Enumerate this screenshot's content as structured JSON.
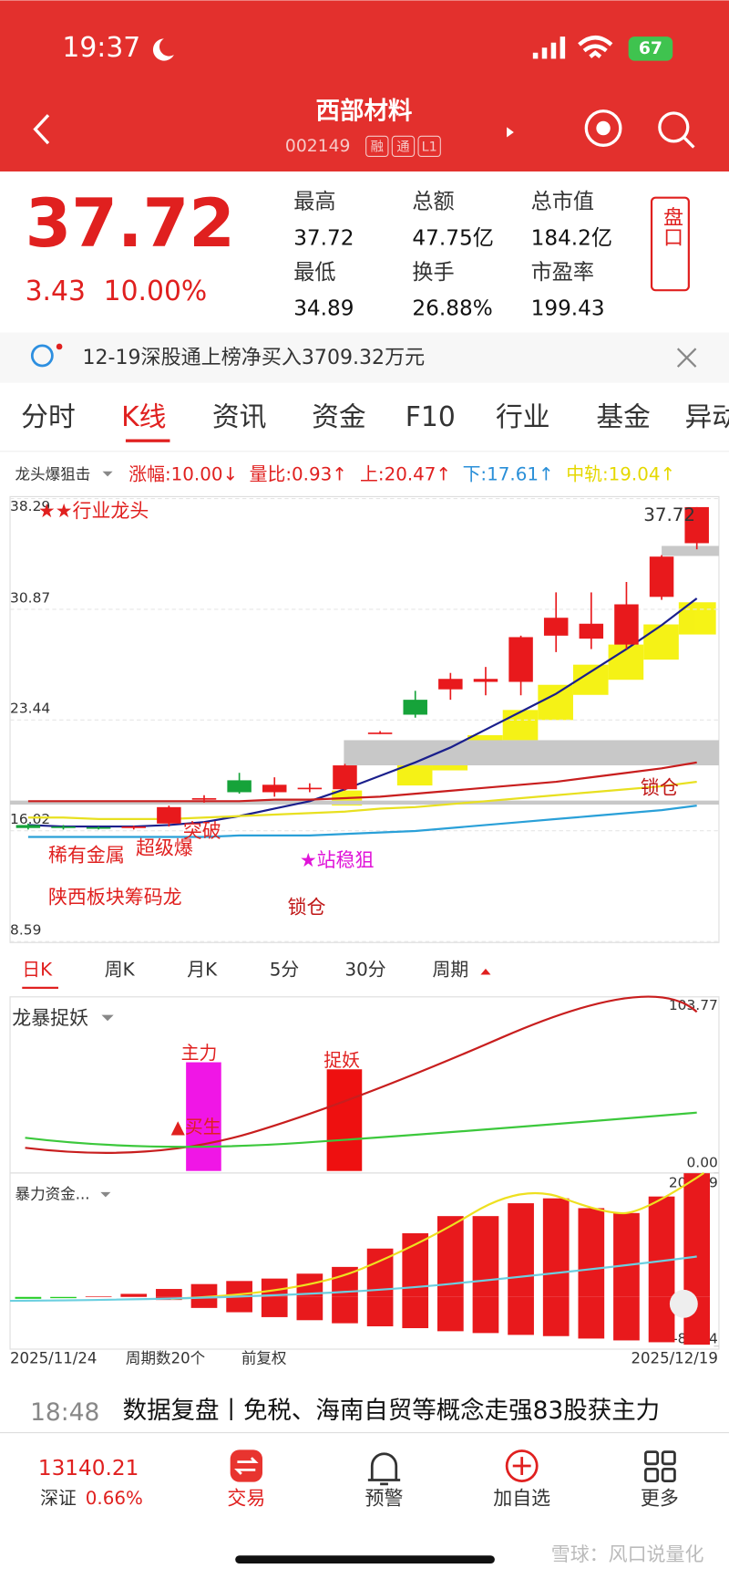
{
  "status_bar": {
    "time": "19:37",
    "battery": "67"
  },
  "header": {
    "title": "西部材料",
    "code": "002149",
    "badges": [
      "融",
      "通",
      "L1"
    ]
  },
  "quote": {
    "price": "37.72",
    "change": "3.43",
    "change_pct": "10.00%",
    "button": "盘口",
    "stats": [
      {
        "label": "最高",
        "value": "37.72"
      },
      {
        "label": "总额",
        "value": "47.75亿"
      },
      {
        "label": "总市值",
        "value": "184.2亿"
      },
      {
        "label": "最低",
        "value": "34.89"
      },
      {
        "label": "换手",
        "value": "26.88%"
      },
      {
        "label": "市盈率",
        "value": "199.43"
      }
    ]
  },
  "notice": "12-19深股通上榜净买入3709.32万元",
  "tabs": [
    "分时",
    "K线",
    "资讯",
    "资金",
    "F10",
    "行业",
    "基金",
    "异动"
  ],
  "indicator_bar": {
    "name": "龙头爆狙击",
    "items": [
      "涨幅:10.00↓",
      "量比:0.93↑",
      "上:20.47↑",
      "下:17.61↑",
      "中轨:19.04↑"
    ]
  },
  "chart_data": [
    {
      "type": "candlestick",
      "ylim": [
        8.59,
        38.29
      ],
      "yticks": [
        38.29,
        30.87,
        23.44,
        16.02,
        8.59
      ],
      "grid": true,
      "up_color": "#e8191c",
      "down_color": "#16a33a",
      "open": [
        16.4,
        16.3,
        16.25,
        16.2,
        16.5,
        18.1,
        19.4,
        18.6,
        18.8,
        18.8,
        22.6,
        24.8,
        25.5,
        26.0,
        26.0,
        29.1,
        28.9,
        28.5,
        31.7,
        35.3
      ],
      "high": [
        16.5,
        16.4,
        16.3,
        16.35,
        17.7,
        18.4,
        19.9,
        19.6,
        19.2,
        20.5,
        22.7,
        25.4,
        26.6,
        27.0,
        29.1,
        32.0,
        32.0,
        32.7,
        34.5,
        37.72
      ],
      "low": [
        16.1,
        16.1,
        16.1,
        16.1,
        16.3,
        17.9,
        18.5,
        18.3,
        18.6,
        18.7,
        22.5,
        23.6,
        24.8,
        25.1,
        25.1,
        28.0,
        28.2,
        28.2,
        31.5,
        34.89
      ],
      "close": [
        16.2,
        16.2,
        16.15,
        16.3,
        17.6,
        18.2,
        18.6,
        19.1,
        18.9,
        20.4,
        22.6,
        23.8,
        26.2,
        26.2,
        29.0,
        30.3,
        29.9,
        31.2,
        34.4,
        37.72
      ],
      "lines": [
        {
          "color": "#1a1f8c",
          "values": [
            16.4,
            16.3,
            16.3,
            16.3,
            16.4,
            16.6,
            17.0,
            17.5,
            18.0,
            18.8,
            19.7,
            20.6,
            21.6,
            22.8,
            24.0,
            25.2,
            26.7,
            28.2,
            29.8,
            31.6
          ]
        },
        {
          "color": "#c81e1e",
          "values": [
            18.0,
            18.0,
            18.0,
            18.0,
            18.0,
            18.0,
            18.0,
            18.1,
            18.1,
            18.2,
            18.3,
            18.5,
            18.7,
            18.9,
            19.1,
            19.3,
            19.6,
            19.9,
            20.2,
            20.6
          ]
        },
        {
          "color": "#e8e020",
          "values": [
            16.9,
            16.9,
            16.8,
            16.8,
            16.8,
            16.9,
            17.0,
            17.1,
            17.2,
            17.3,
            17.5,
            17.6,
            17.8,
            18.0,
            18.2,
            18.4,
            18.6,
            18.8,
            19.0,
            19.3
          ]
        },
        {
          "color": "#2aa0d8",
          "values": [
            15.6,
            15.6,
            15.6,
            15.6,
            15.6,
            15.6,
            15.7,
            15.7,
            15.7,
            15.8,
            15.9,
            16.0,
            16.2,
            16.4,
            16.6,
            16.8,
            17.0,
            17.2,
            17.4,
            17.7
          ]
        }
      ],
      "last_label": "37.72",
      "annotations": [
        "★★行业龙头",
        "稀有金属",
        "超级爆",
        "突破",
        "陕西板块筹码龙",
        "★站稳狙",
        "锁仓",
        "锁仓"
      ]
    },
    {
      "type": "bar",
      "name": "暴力资金...",
      "ylim": [
        -80.34,
        202.39
      ],
      "yticks": [
        202.39,
        {
          "value": -80.34,
          "label": "-80.34"
        }
      ],
      "negative_color": "#22cc22",
      "series": [
        {
          "color": "#e8191c",
          "values": [
            -3,
            -2,
            1,
            5,
            13,
            21,
            26,
            30,
            38,
            49,
            79,
            104,
            132,
            132,
            153,
            161,
            145,
            137,
            164,
            202
          ]
        },
        {
          "color": "#e8191c",
          "values": [
            0,
            0,
            0,
            0,
            -5,
            -18,
            -25,
            -33,
            -38,
            -43,
            -48,
            -51,
            -56,
            -59,
            -62,
            -64,
            -68,
            -71,
            -74,
            -78
          ]
        }
      ]
    }
  ],
  "period_tabs": [
    "日K",
    "周K",
    "月K",
    "5分",
    "30分",
    "周期"
  ],
  "sub_panel": {
    "name": "龙暴捉妖",
    "top": "103.77",
    "bottom": "0.00",
    "labels": [
      "主力",
      "捉妖",
      "▲买生"
    ]
  },
  "footer_dates": {
    "start": "2025/11/24",
    "count": "周期数20个",
    "adjust": "前复权",
    "end": "2025/12/19"
  },
  "news": {
    "time": "18:48",
    "title": "数据复盘丨免税、海南自贸等概念走强83股获主力"
  },
  "bottom_nav": {
    "index_value": "13140.21",
    "index_name": "深证",
    "index_change": "0.66%",
    "items": [
      "交易",
      "预警",
      "加自选",
      "更多"
    ]
  },
  "watermark": "雪球：风口说量化"
}
